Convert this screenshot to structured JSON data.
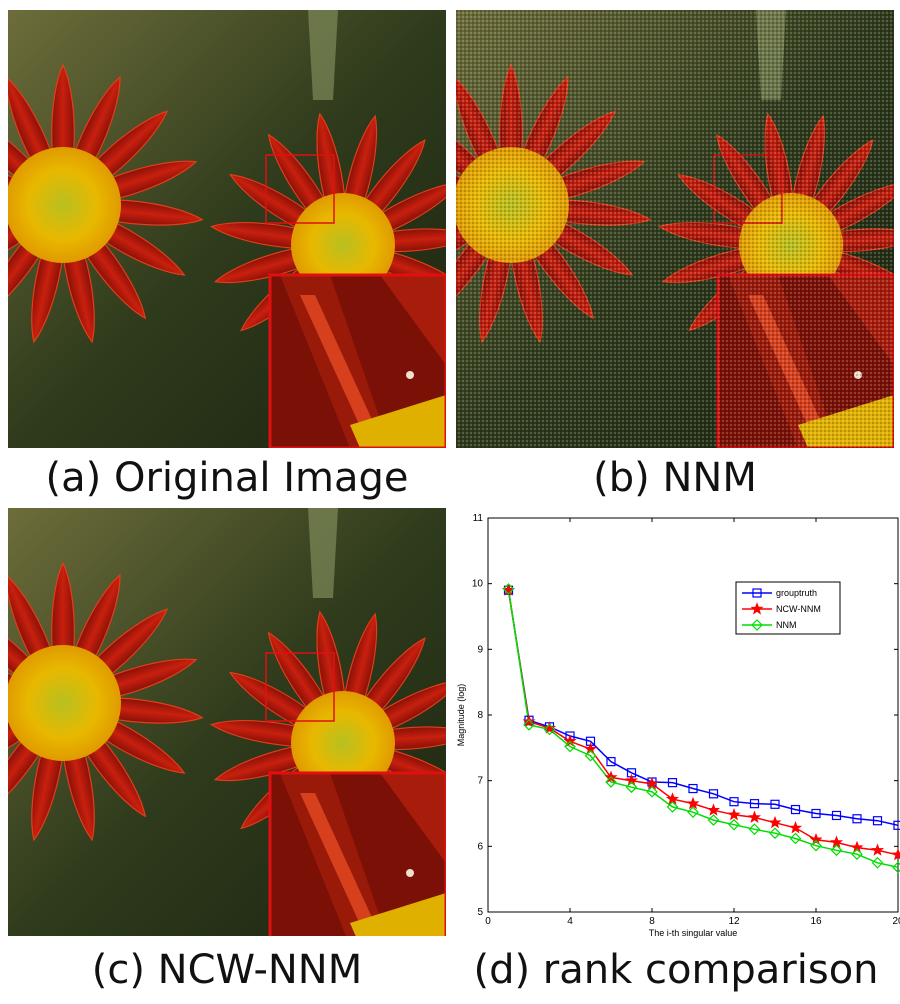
{
  "captions": {
    "a": "(a) Original Image",
    "b": "(b) NNM",
    "c": "(c) NCW-NNM",
    "d": "(d) rank comparison"
  },
  "colors": {
    "petal": "#b01a0c",
    "petal_highlight": "#e03a1a",
    "center": "#e8b800",
    "background": "#2c3a1c",
    "zoom_frame": "#e01010"
  },
  "chart_data": {
    "type": "line",
    "xlabel": "The i-th singular value",
    "ylabel": "Magnitude (log)",
    "xlim": [
      0,
      20
    ],
    "ylim": [
      5,
      11
    ],
    "xticks": [
      0,
      4,
      8,
      12,
      16,
      20
    ],
    "yticks": [
      5,
      6,
      7,
      8,
      9,
      10,
      11
    ],
    "legend_position": "top-right",
    "x": [
      1,
      2,
      3,
      4,
      5,
      6,
      7,
      8,
      9,
      10,
      11,
      12,
      13,
      14,
      15,
      16,
      17,
      18,
      19,
      20
    ],
    "series": [
      {
        "name": "grouptruth",
        "color": "#0000ff",
        "marker": "square",
        "values": [
          9.9,
          7.92,
          7.82,
          7.68,
          7.6,
          7.29,
          7.12,
          6.98,
          6.97,
          6.88,
          6.8,
          6.68,
          6.65,
          6.64,
          6.56,
          6.5,
          6.47,
          6.42,
          6.39,
          6.32
        ]
      },
      {
        "name": "NCW-NNM",
        "color": "#ff0000",
        "marker": "star",
        "values": [
          9.9,
          7.9,
          7.8,
          7.6,
          7.48,
          7.05,
          7.0,
          6.95,
          6.72,
          6.65,
          6.55,
          6.48,
          6.44,
          6.36,
          6.28,
          6.1,
          6.06,
          5.98,
          5.94,
          5.87
        ]
      },
      {
        "name": "NNM",
        "color": "#00dd00",
        "marker": "diamond",
        "values": [
          9.92,
          7.85,
          7.78,
          7.52,
          7.38,
          6.98,
          6.9,
          6.83,
          6.6,
          6.52,
          6.4,
          6.33,
          6.26,
          6.2,
          6.12,
          6.01,
          5.94,
          5.88,
          5.75,
          5.68
        ]
      }
    ]
  }
}
